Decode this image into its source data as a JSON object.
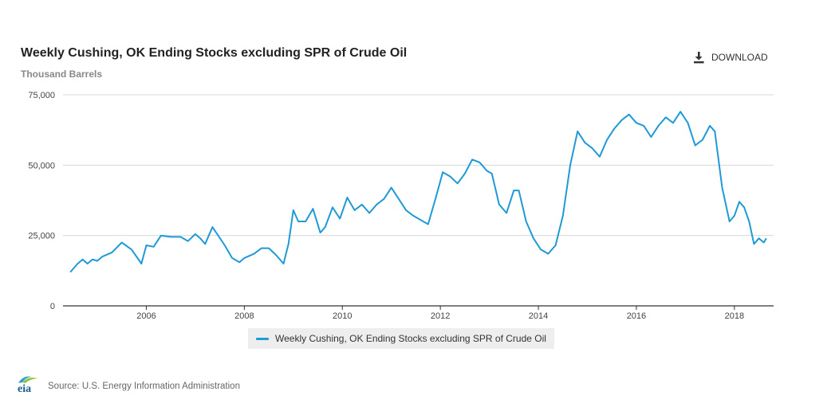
{
  "header": {
    "title": "Weekly Cushing, OK Ending Stocks excluding SPR of Crude Oil",
    "subtitle": "Thousand Barrels",
    "download_label": "DOWNLOAD",
    "download_icon": "download-icon"
  },
  "footer": {
    "logo_text": "eia",
    "source": "Source: U.S. Energy Information Administration"
  },
  "colors": {
    "series": "#1f9ad6",
    "grid": "#d8d8d8",
    "axis": "#333333"
  },
  "chart_data": {
    "type": "line",
    "title": "Weekly Cushing, OK Ending Stocks excluding SPR of Crude Oil",
    "ylabel": "Thousand Barrels",
    "xlim": [
      2004.3,
      2018.8
    ],
    "ylim": [
      0,
      75000
    ],
    "y_ticks": [
      0,
      25000,
      50000,
      75000
    ],
    "y_tick_labels": [
      "0",
      "25,000",
      "50,000",
      "75,000"
    ],
    "x_ticks": [
      2006,
      2008,
      2010,
      2012,
      2014,
      2016,
      2018
    ],
    "x_tick_labels": [
      "2006",
      "2008",
      "2010",
      "2012",
      "2014",
      "2016",
      "2018"
    ],
    "grid": true,
    "legend_position": "bottom-center",
    "series": [
      {
        "name": "Weekly Cushing, OK Ending Stocks excluding SPR of Crude Oil",
        "x": [
          2004.45,
          2004.6,
          2004.7,
          2004.8,
          2004.9,
          2005.0,
          2005.1,
          2005.3,
          2005.5,
          2005.7,
          2005.9,
          2006.0,
          2006.15,
          2006.3,
          2006.5,
          2006.7,
          2006.85,
          2007.0,
          2007.1,
          2007.2,
          2007.35,
          2007.6,
          2007.75,
          2007.9,
          2008.0,
          2008.2,
          2008.35,
          2008.5,
          2008.65,
          2008.8,
          2008.9,
          2009.0,
          2009.1,
          2009.25,
          2009.4,
          2009.55,
          2009.65,
          2009.8,
          2009.95,
          2010.1,
          2010.25,
          2010.4,
          2010.55,
          2010.7,
          2010.85,
          2011.0,
          2011.15,
          2011.3,
          2011.45,
          2011.6,
          2011.75,
          2011.9,
          2012.05,
          2012.2,
          2012.35,
          2012.5,
          2012.65,
          2012.8,
          2012.95,
          2013.05,
          2013.2,
          2013.35,
          2013.5,
          2013.6,
          2013.75,
          2013.9,
          2014.05,
          2014.2,
          2014.35,
          2014.5,
          2014.65,
          2014.8,
          2014.95,
          2015.1,
          2015.25,
          2015.4,
          2015.55,
          2015.7,
          2015.85,
          2016.0,
          2016.15,
          2016.3,
          2016.45,
          2016.6,
          2016.75,
          2016.9,
          2017.05,
          2017.2,
          2017.35,
          2017.5,
          2017.6,
          2017.75,
          2017.9,
          2018.0,
          2018.1,
          2018.2,
          2018.3,
          2018.4,
          2018.5,
          2018.6,
          2018.65
        ],
        "values": [
          12000,
          15000,
          16500,
          15000,
          16500,
          16000,
          17500,
          19000,
          22500,
          20000,
          15000,
          21500,
          21000,
          25000,
          24500,
          24500,
          23000,
          25500,
          24000,
          22000,
          28000,
          21500,
          17000,
          15500,
          17000,
          18500,
          20500,
          20500,
          18000,
          15000,
          22000,
          34000,
          30000,
          30000,
          34500,
          26000,
          28000,
          35000,
          31000,
          38500,
          34000,
          36000,
          33000,
          36000,
          38000,
          42000,
          38000,
          34000,
          32000,
          30500,
          29000,
          38000,
          47500,
          46000,
          43500,
          47000,
          52000,
          51000,
          48000,
          47000,
          36000,
          33000,
          41000,
          41000,
          30000,
          24000,
          20000,
          18500,
          21500,
          32000,
          50000,
          62000,
          58000,
          56000,
          53000,
          59000,
          63000,
          66000,
          68000,
          65000,
          64000,
          60000,
          64000,
          67000,
          65000,
          69000,
          65000,
          57000,
          59000,
          64000,
          62000,
          42000,
          30000,
          32000,
          37000,
          35000,
          30000,
          22000,
          24000,
          22500,
          24000
        ]
      }
    ]
  }
}
